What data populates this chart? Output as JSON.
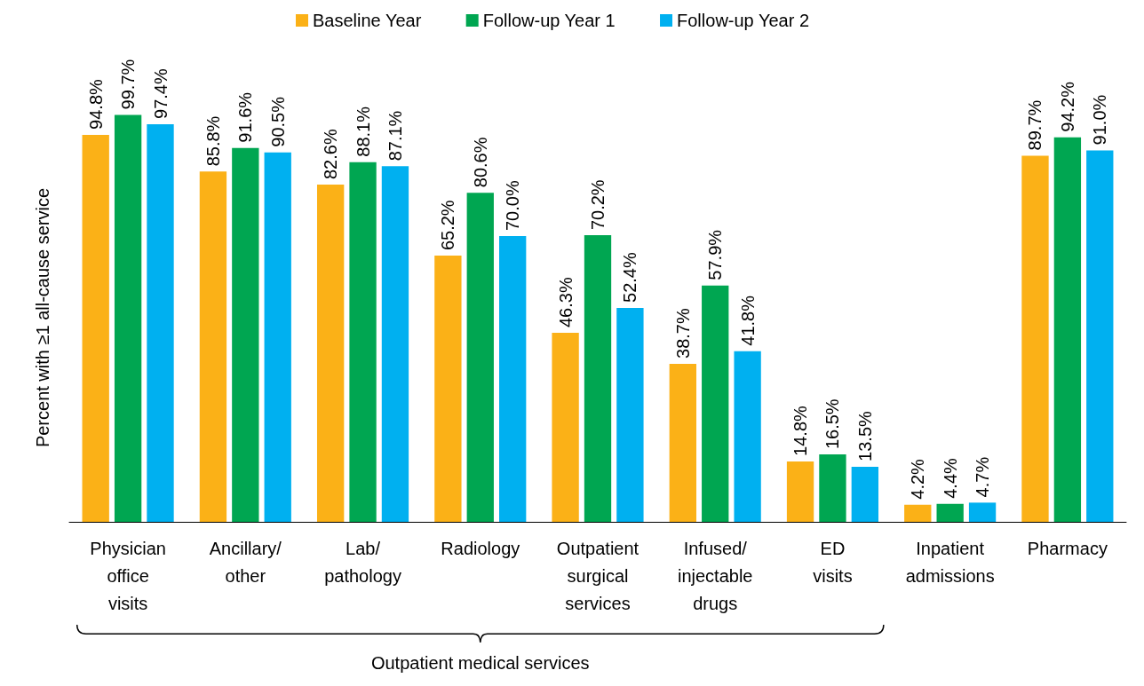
{
  "chart_data": {
    "type": "bar",
    "ylabel": "Percent with ≥1 all-cause service",
    "categories": [
      "Physician\noffice\nvisits",
      "Ancillary/\nother",
      "Lab/\npathology",
      "Radiology",
      "Outpatient\nsurgical\nservices",
      "Infused/\ninjectable\ndrugs",
      "ED\nvisits",
      "Inpatient\nadmissions",
      "Pharmacy"
    ],
    "series": [
      {
        "name": "Baseline Year",
        "color": "#fbb117",
        "values": [
          94.8,
          85.8,
          82.6,
          65.2,
          46.3,
          38.7,
          14.8,
          4.2,
          89.7
        ],
        "value_labels": [
          "94.8%",
          "85.8%",
          "82.6%",
          "65.2%",
          "46.3%",
          "38.7%",
          "14.8%",
          "4.2%",
          "89.7%"
        ]
      },
      {
        "name": "Follow-up Year 1",
        "color": "#00a651",
        "values": [
          99.7,
          91.6,
          88.1,
          80.6,
          70.2,
          57.9,
          16.5,
          4.4,
          94.2
        ],
        "value_labels": [
          "99.7%",
          "91.6%",
          "88.1%",
          "80.6%",
          "70.2%",
          "57.9%",
          "16.5%",
          "4.4%",
          "94.2%"
        ]
      },
      {
        "name": "Follow-up Year 2",
        "color": "#00b0f0",
        "values": [
          97.4,
          90.5,
          87.1,
          70.0,
          52.4,
          41.8,
          13.5,
          4.7,
          91.0
        ],
        "value_labels": [
          "97.4%",
          "90.5%",
          "87.1%",
          "70.0%",
          "52.4%",
          "41.8%",
          "13.5%",
          "4.7%",
          "91.0%"
        ]
      }
    ],
    "legend": "top",
    "grid": false,
    "annotations": [
      "Outpatient medical services"
    ]
  }
}
